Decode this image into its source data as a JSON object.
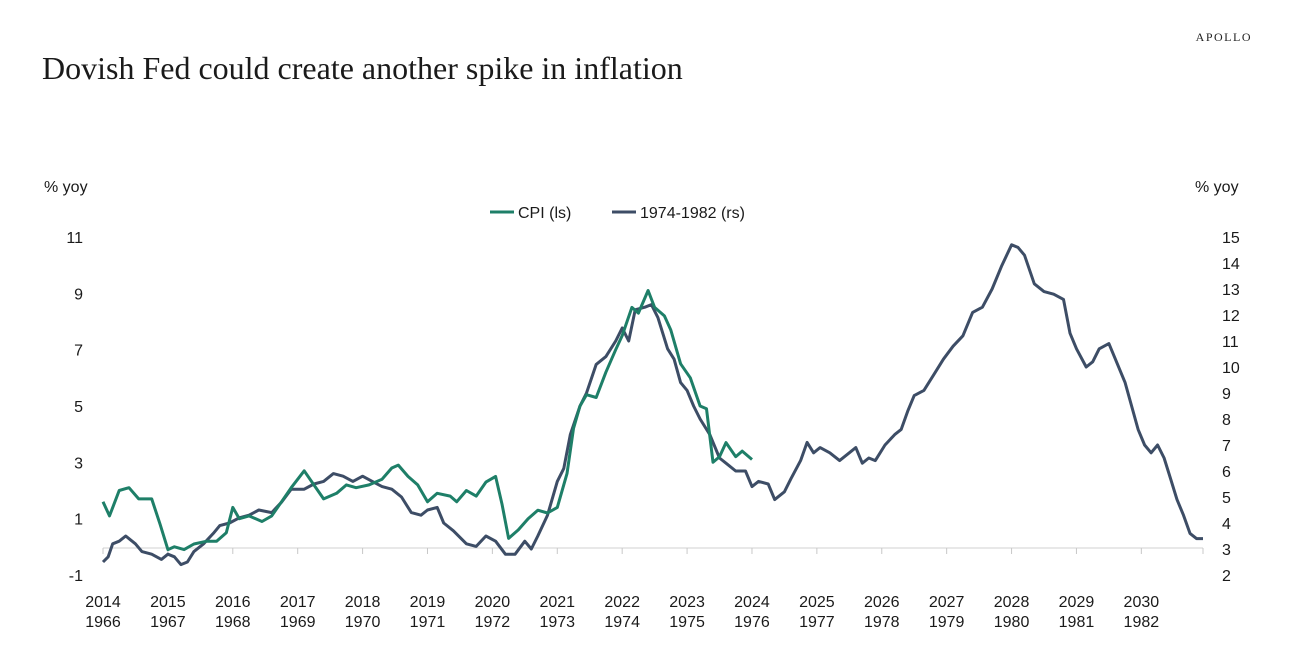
{
  "header": {
    "title": "Dovish Fed could create another spike in inflation",
    "brand": "APOLLO"
  },
  "chart_data": {
    "type": "line",
    "title": "Dovish Fed could create another spike in inflation",
    "left_axis": {
      "label": "% yoy",
      "ticks": [
        -1,
        1,
        3,
        5,
        7,
        9,
        11
      ],
      "ylim": [
        -1,
        11
      ]
    },
    "right_axis": {
      "label": "% yoy",
      "ticks": [
        2,
        3,
        4,
        5,
        6,
        7,
        8,
        9,
        10,
        11,
        12,
        13,
        14,
        15
      ],
      "ylim": [
        2,
        15
      ]
    },
    "x_axis": {
      "top_labels": [
        "2014",
        "2015",
        "2016",
        "2017",
        "2018",
        "2019",
        "2020",
        "2021",
        "2022",
        "2023",
        "2024",
        "2025",
        "2026",
        "2027",
        "2028",
        "2029",
        "2030"
      ],
      "bottom_labels": [
        "1966",
        "1967",
        "1968",
        "1969",
        "1970",
        "1971",
        "1972",
        "1973",
        "1974",
        "1975",
        "1976",
        "1977",
        "1978",
        "1979",
        "1980",
        "1981",
        "1982"
      ],
      "xlim": [
        2014,
        2030.95
      ]
    },
    "legend_position": "top-center",
    "series": [
      {
        "name": "CPI (ls)",
        "axis": "left",
        "color": "#1e7f68",
        "points": [
          [
            2014.0,
            1.6
          ],
          [
            2014.1,
            1.1
          ],
          [
            2014.25,
            2.0
          ],
          [
            2014.4,
            2.1
          ],
          [
            2014.55,
            1.7
          ],
          [
            2014.75,
            1.7
          ],
          [
            2014.88,
            0.8
          ],
          [
            2015.0,
            -0.1
          ],
          [
            2015.1,
            0.0
          ],
          [
            2015.25,
            -0.1
          ],
          [
            2015.4,
            0.1
          ],
          [
            2015.6,
            0.2
          ],
          [
            2015.75,
            0.2
          ],
          [
            2015.9,
            0.5
          ],
          [
            2016.0,
            1.4
          ],
          [
            2016.1,
            1.0
          ],
          [
            2016.25,
            1.1
          ],
          [
            2016.45,
            0.9
          ],
          [
            2016.6,
            1.1
          ],
          [
            2016.75,
            1.6
          ],
          [
            2016.9,
            2.1
          ],
          [
            2017.1,
            2.7
          ],
          [
            2017.25,
            2.2
          ],
          [
            2017.4,
            1.7
          ],
          [
            2017.6,
            1.9
          ],
          [
            2017.75,
            2.2
          ],
          [
            2017.9,
            2.1
          ],
          [
            2018.1,
            2.2
          ],
          [
            2018.3,
            2.4
          ],
          [
            2018.45,
            2.8
          ],
          [
            2018.55,
            2.9
          ],
          [
            2018.7,
            2.5
          ],
          [
            2018.85,
            2.2
          ],
          [
            2019.0,
            1.6
          ],
          [
            2019.15,
            1.9
          ],
          [
            2019.35,
            1.8
          ],
          [
            2019.45,
            1.6
          ],
          [
            2019.6,
            2.0
          ],
          [
            2019.75,
            1.8
          ],
          [
            2019.9,
            2.3
          ],
          [
            2020.05,
            2.5
          ],
          [
            2020.15,
            1.5
          ],
          [
            2020.25,
            0.3
          ],
          [
            2020.4,
            0.6
          ],
          [
            2020.55,
            1.0
          ],
          [
            2020.7,
            1.3
          ],
          [
            2020.85,
            1.2
          ],
          [
            2021.0,
            1.4
          ],
          [
            2021.15,
            2.6
          ],
          [
            2021.25,
            4.2
          ],
          [
            2021.35,
            5.0
          ],
          [
            2021.45,
            5.4
          ],
          [
            2021.6,
            5.3
          ],
          [
            2021.75,
            6.2
          ],
          [
            2021.9,
            7.0
          ],
          [
            2022.0,
            7.5
          ],
          [
            2022.15,
            8.5
          ],
          [
            2022.25,
            8.3
          ],
          [
            2022.4,
            9.1
          ],
          [
            2022.5,
            8.5
          ],
          [
            2022.65,
            8.2
          ],
          [
            2022.75,
            7.7
          ],
          [
            2022.9,
            6.5
          ],
          [
            2023.05,
            6.0
          ],
          [
            2023.2,
            5.0
          ],
          [
            2023.3,
            4.9
          ],
          [
            2023.4,
            3.0
          ],
          [
            2023.5,
            3.2
          ],
          [
            2023.6,
            3.7
          ],
          [
            2023.75,
            3.2
          ],
          [
            2023.85,
            3.4
          ],
          [
            2024.0,
            3.1
          ]
        ]
      },
      {
        "name": "1974-1982 (rs)",
        "axis": "right",
        "color": "#3d4d66",
        "points": [
          [
            2014.0,
            2.5
          ],
          [
            2014.08,
            2.7
          ],
          [
            2014.15,
            3.2
          ],
          [
            2014.25,
            3.3
          ],
          [
            2014.35,
            3.5
          ],
          [
            2014.5,
            3.2
          ],
          [
            2014.6,
            2.9
          ],
          [
            2014.75,
            2.8
          ],
          [
            2014.9,
            2.6
          ],
          [
            2015.0,
            2.8
          ],
          [
            2015.1,
            2.7
          ],
          [
            2015.2,
            2.4
          ],
          [
            2015.3,
            2.5
          ],
          [
            2015.4,
            2.9
          ],
          [
            2015.55,
            3.2
          ],
          [
            2015.7,
            3.6
          ],
          [
            2015.8,
            3.9
          ],
          [
            2015.95,
            4.0
          ],
          [
            2016.1,
            4.2
          ],
          [
            2016.25,
            4.3
          ],
          [
            2016.4,
            4.5
          ],
          [
            2016.6,
            4.4
          ],
          [
            2016.75,
            4.8
          ],
          [
            2016.9,
            5.3
          ],
          [
            2017.1,
            5.3
          ],
          [
            2017.25,
            5.5
          ],
          [
            2017.4,
            5.6
          ],
          [
            2017.55,
            5.9
          ],
          [
            2017.7,
            5.8
          ],
          [
            2017.85,
            5.6
          ],
          [
            2018.0,
            5.8
          ],
          [
            2018.15,
            5.6
          ],
          [
            2018.3,
            5.4
          ],
          [
            2018.45,
            5.3
          ],
          [
            2018.6,
            5.0
          ],
          [
            2018.75,
            4.4
          ],
          [
            2018.9,
            4.3
          ],
          [
            2019.0,
            4.5
          ],
          [
            2019.15,
            4.6
          ],
          [
            2019.25,
            4.0
          ],
          [
            2019.4,
            3.7
          ],
          [
            2019.6,
            3.2
          ],
          [
            2019.75,
            3.1
          ],
          [
            2019.9,
            3.5
          ],
          [
            2020.05,
            3.3
          ],
          [
            2020.2,
            2.8
          ],
          [
            2020.35,
            2.8
          ],
          [
            2020.5,
            3.3
          ],
          [
            2020.6,
            3.0
          ],
          [
            2020.7,
            3.5
          ],
          [
            2020.85,
            4.3
          ],
          [
            2021.0,
            5.6
          ],
          [
            2021.1,
            6.1
          ],
          [
            2021.2,
            7.4
          ],
          [
            2021.35,
            8.5
          ],
          [
            2021.45,
            9.0
          ],
          [
            2021.6,
            10.1
          ],
          [
            2021.75,
            10.4
          ],
          [
            2021.9,
            11.0
          ],
          [
            2022.0,
            11.5
          ],
          [
            2022.1,
            11.0
          ],
          [
            2022.2,
            12.2
          ],
          [
            2022.35,
            12.3
          ],
          [
            2022.45,
            12.4
          ],
          [
            2022.55,
            11.9
          ],
          [
            2022.7,
            10.7
          ],
          [
            2022.8,
            10.3
          ],
          [
            2022.9,
            9.4
          ],
          [
            2023.0,
            9.1
          ],
          [
            2023.1,
            8.5
          ],
          [
            2023.2,
            8.0
          ],
          [
            2023.35,
            7.4
          ],
          [
            2023.5,
            6.5
          ],
          [
            2023.6,
            6.3
          ],
          [
            2023.75,
            6.0
          ],
          [
            2023.9,
            6.0
          ],
          [
            2024.0,
            5.4
          ],
          [
            2024.1,
            5.6
          ],
          [
            2024.25,
            5.5
          ],
          [
            2024.35,
            4.9
          ],
          [
            2024.5,
            5.2
          ],
          [
            2024.6,
            5.7
          ],
          [
            2024.75,
            6.4
          ],
          [
            2024.85,
            7.1
          ],
          [
            2024.95,
            6.7
          ],
          [
            2025.05,
            6.9
          ],
          [
            2025.2,
            6.7
          ],
          [
            2025.35,
            6.4
          ],
          [
            2025.5,
            6.7
          ],
          [
            2025.6,
            6.9
          ],
          [
            2025.7,
            6.3
          ],
          [
            2025.8,
            6.5
          ],
          [
            2025.9,
            6.4
          ],
          [
            2026.05,
            7.0
          ],
          [
            2026.2,
            7.4
          ],
          [
            2026.3,
            7.6
          ],
          [
            2026.4,
            8.3
          ],
          [
            2026.5,
            8.9
          ],
          [
            2026.65,
            9.1
          ],
          [
            2026.8,
            9.7
          ],
          [
            2026.95,
            10.3
          ],
          [
            2027.1,
            10.8
          ],
          [
            2027.25,
            11.2
          ],
          [
            2027.4,
            12.1
          ],
          [
            2027.55,
            12.3
          ],
          [
            2027.7,
            13.0
          ],
          [
            2027.85,
            13.9
          ],
          [
            2028.0,
            14.7
          ],
          [
            2028.1,
            14.6
          ],
          [
            2028.2,
            14.3
          ],
          [
            2028.35,
            13.2
          ],
          [
            2028.5,
            12.9
          ],
          [
            2028.65,
            12.8
          ],
          [
            2028.8,
            12.6
          ],
          [
            2028.9,
            11.3
          ],
          [
            2029.0,
            10.7
          ],
          [
            2029.15,
            10.0
          ],
          [
            2029.25,
            10.2
          ],
          [
            2029.35,
            10.7
          ],
          [
            2029.5,
            10.9
          ],
          [
            2029.6,
            10.3
          ],
          [
            2029.75,
            9.4
          ],
          [
            2029.85,
            8.5
          ],
          [
            2029.95,
            7.6
          ],
          [
            2030.05,
            7.0
          ],
          [
            2030.15,
            6.7
          ],
          [
            2030.25,
            7.0
          ],
          [
            2030.35,
            6.5
          ],
          [
            2030.45,
            5.7
          ],
          [
            2030.55,
            4.9
          ],
          [
            2030.65,
            4.3
          ],
          [
            2030.75,
            3.6
          ],
          [
            2030.85,
            3.4
          ],
          [
            2030.95,
            3.4
          ]
        ]
      }
    ]
  }
}
